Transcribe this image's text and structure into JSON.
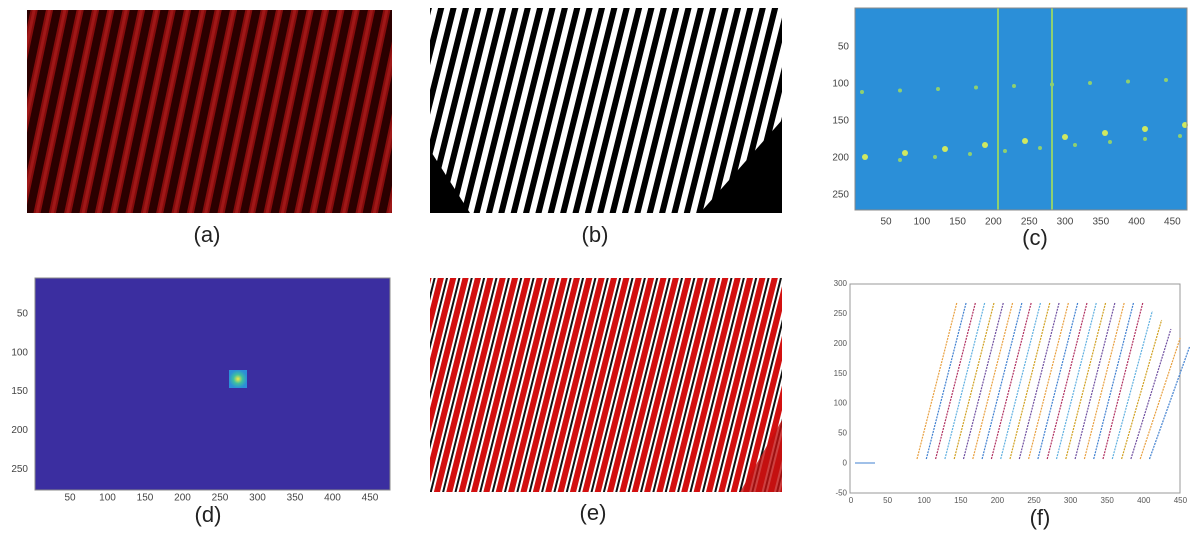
{
  "panels": [
    {
      "label": "(a)"
    },
    {
      "label": "(b)"
    },
    {
      "label": "(c)",
      "xticks": [
        50,
        100,
        150,
        200,
        250,
        300,
        350,
        400,
        450
      ],
      "yticks": [
        50,
        100,
        150,
        200,
        250
      ]
    },
    {
      "label": "(d)",
      "xticks": [
        50,
        100,
        150,
        200,
        250,
        300,
        350,
        400,
        450
      ],
      "yticks": [
        50,
        100,
        150,
        200,
        250
      ]
    },
    {
      "label": "(e)"
    },
    {
      "label": "(f)",
      "xticks": [
        0,
        50,
        100,
        150,
        200,
        250,
        300,
        350,
        400,
        450
      ],
      "yticks": [
        300,
        250,
        200,
        150,
        100,
        50,
        0,
        -50
      ]
    }
  ]
}
